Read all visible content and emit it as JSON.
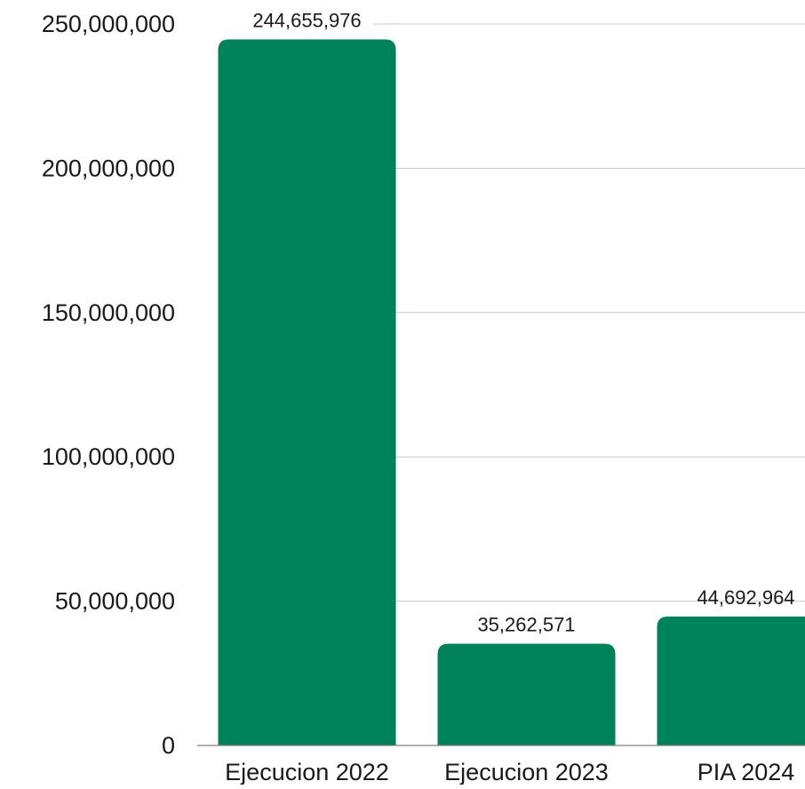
{
  "chart_data": {
    "type": "bar",
    "title": "",
    "xlabel": "",
    "ylabel": "",
    "categories": [
      "Ejecucion 2022",
      "Ejecucion 2023",
      "PIA 2024"
    ],
    "values": [
      244655976,
      35262571,
      44692964
    ],
    "value_labels": [
      "244,655,976",
      "35,262,571",
      "44,692,964"
    ],
    "ylim": [
      0,
      250000000
    ],
    "y_ticks": [
      0,
      50000000,
      100000000,
      150000000,
      200000000,
      250000000
    ],
    "y_tick_labels": [
      "0",
      "50,000,000",
      "100,000,000",
      "150,000,000",
      "200,000,000",
      "250,000,000"
    ],
    "grid": true,
    "bar_color": "#00825A"
  }
}
